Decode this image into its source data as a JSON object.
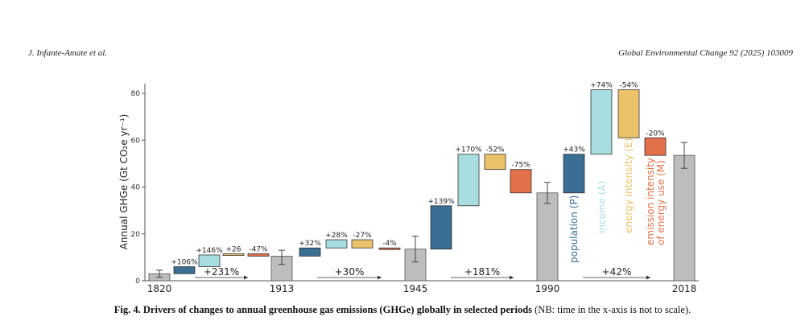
{
  "header": {
    "left": "J. Infante-Amate et al.",
    "right": "Global Environmental Change 92 (2025) 103009"
  },
  "caption": {
    "title": "Fig. 4. Drivers of changes to annual greenhouse gas emissions (GHGe) globally in selected periods",
    "note": "(NB: time in the x-axis is not to scale)."
  },
  "colors": {
    "total": "#bdbdbd",
    "population": "#3a6e92",
    "income": "#a8dde0",
    "energy_intensity": "#ebc26a",
    "emission_intensity": "#e2704a"
  },
  "chart_data": {
    "type": "bar",
    "subtype": "waterfall",
    "ylabel": "Annual GHGe (Gt CO₂e yr⁻¹)",
    "ylim": [
      0,
      80
    ],
    "yticks": [
      0,
      20,
      40,
      60,
      80
    ],
    "xticks": [
      "1820",
      "1913",
      "1945",
      "1990",
      "2018"
    ],
    "totals": [
      {
        "year": "1820",
        "value": 3,
        "err_low": 1.5,
        "err_high": 4.5
      },
      {
        "year": "1913",
        "value": 10.5,
        "err_low": 7,
        "err_high": 13
      },
      {
        "year": "1945",
        "value": 13.5,
        "err_low": 8,
        "err_high": 19
      },
      {
        "year": "1990",
        "value": 37.5,
        "err_low": 33,
        "err_high": 42
      },
      {
        "year": "2018",
        "value": 53.5,
        "err_low": 48,
        "err_high": 59
      }
    ],
    "periods": [
      {
        "growth": "+231%",
        "drivers": [
          {
            "driver": "population",
            "from": 3,
            "to": 6,
            "label": "+106%"
          },
          {
            "driver": "income",
            "from": 6,
            "to": 11,
            "label": "+146%"
          },
          {
            "driver": "energy_intensity",
            "from": 11,
            "to": 11.5,
            "label": "+26"
          },
          {
            "driver": "emission_intensity",
            "from": 11.5,
            "to": 10.5,
            "label": "-47%"
          }
        ]
      },
      {
        "growth": "+30%",
        "drivers": [
          {
            "driver": "population",
            "from": 10.5,
            "to": 14,
            "label": "+32%"
          },
          {
            "driver": "income",
            "from": 14,
            "to": 17.5,
            "label": "+28%"
          },
          {
            "driver": "energy_intensity",
            "from": 17.5,
            "to": 14,
            "label": "-27%"
          },
          {
            "driver": "emission_intensity",
            "from": 14,
            "to": 13.5,
            "label": "-4%"
          }
        ]
      },
      {
        "growth": "+181%",
        "drivers": [
          {
            "driver": "population",
            "from": 13.5,
            "to": 32,
            "label": "+139%"
          },
          {
            "driver": "income",
            "from": 32,
            "to": 54,
            "label": "+170%"
          },
          {
            "driver": "energy_intensity",
            "from": 54,
            "to": 47.5,
            "label": "-52%"
          },
          {
            "driver": "emission_intensity",
            "from": 47.5,
            "to": 37.5,
            "label": "-75%"
          }
        ]
      },
      {
        "growth": "+42%",
        "drivers": [
          {
            "driver": "population",
            "from": 37.5,
            "to": 54,
            "label": "+43%"
          },
          {
            "driver": "income",
            "from": 54,
            "to": 81.5,
            "label": "+74%"
          },
          {
            "driver": "energy_intensity",
            "from": 81.5,
            "to": 61,
            "label": "-54%"
          },
          {
            "driver": "emission_intensity",
            "from": 61,
            "to": 53.5,
            "label": "-20%"
          }
        ]
      }
    ],
    "legend": [
      {
        "driver": "population",
        "text": "population (P)"
      },
      {
        "driver": "income",
        "text": "income (A)"
      },
      {
        "driver": "energy_intensity",
        "text": "energy intensity (E)"
      },
      {
        "driver": "emission_intensity",
        "text": "emission intensity of energy use (M)"
      }
    ]
  }
}
